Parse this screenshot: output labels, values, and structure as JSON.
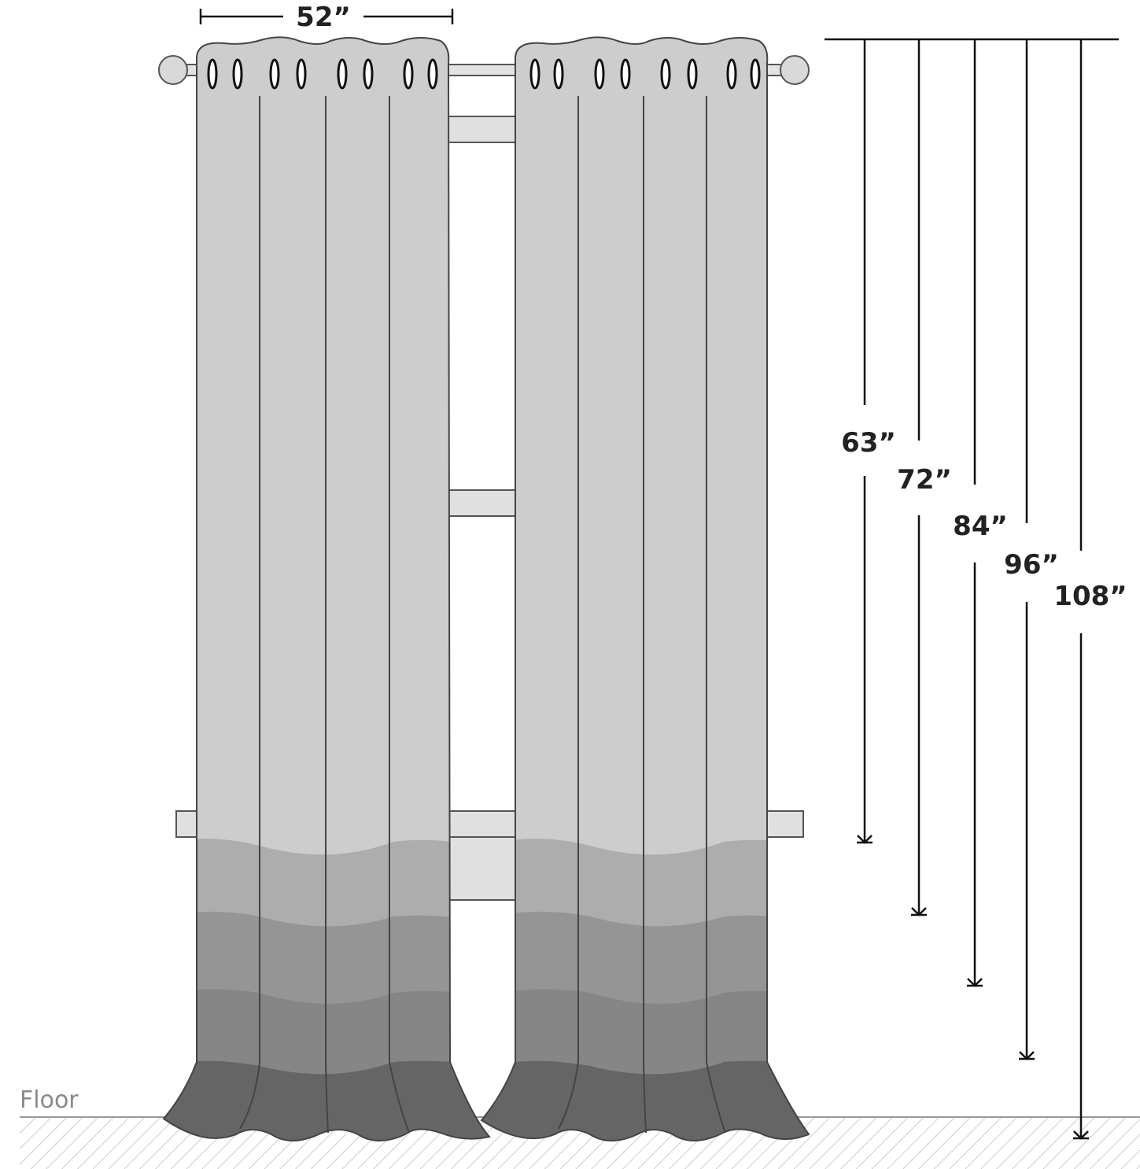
{
  "width_label": "52”",
  "length_labels": [
    "63”",
    "72”",
    "84”",
    "96”",
    "108”"
  ],
  "floor_label": "Floor"
}
